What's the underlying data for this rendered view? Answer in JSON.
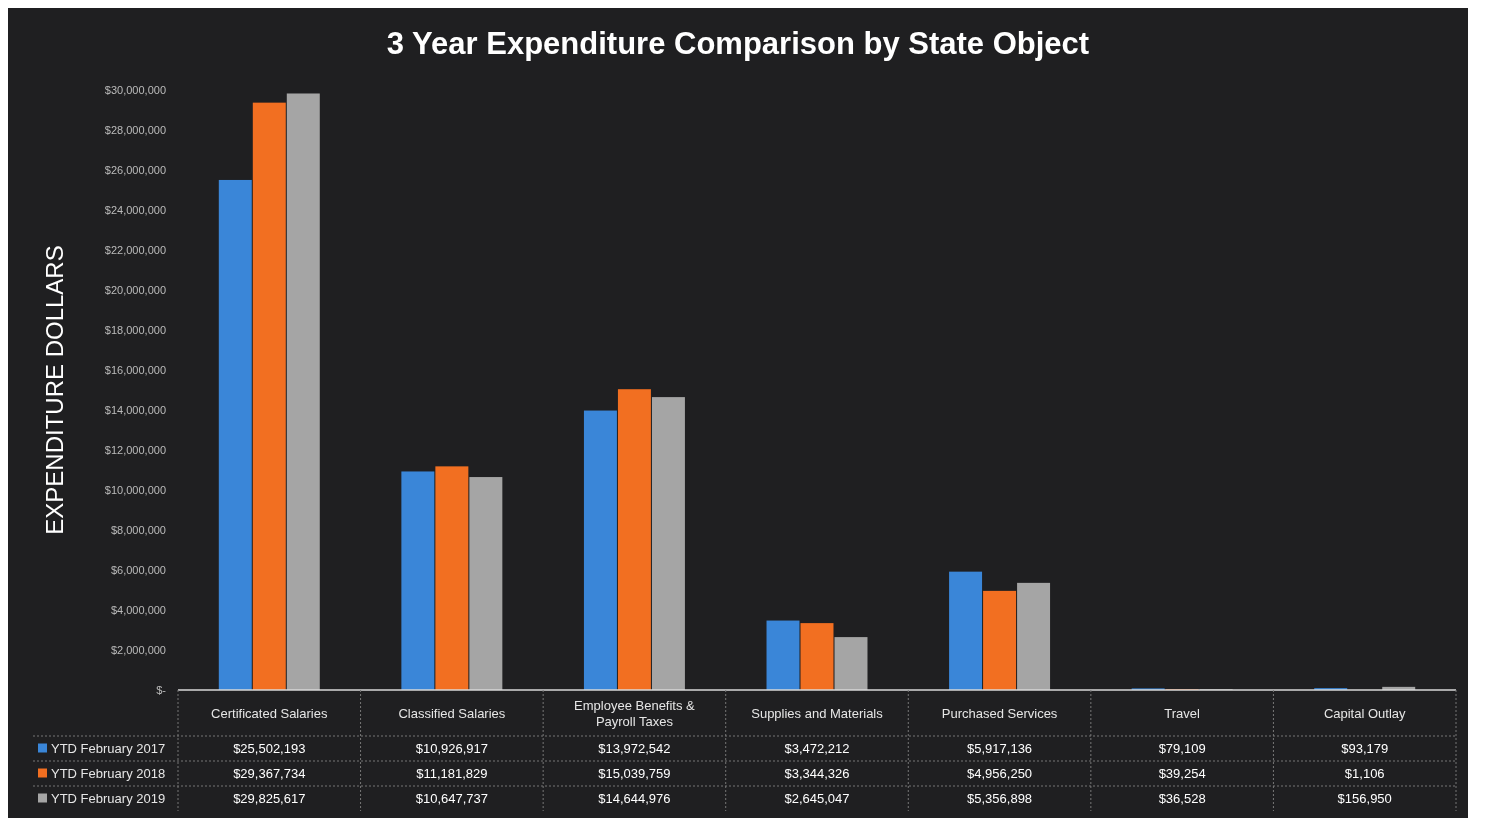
{
  "chart_data": {
    "type": "bar",
    "title": "3 Year Expenditure Comparison by State Object",
    "ylabel": "EXPENDITURE DOLLARS",
    "categories": [
      "Certificated Salaries",
      "Classified Salaries",
      "Employee Benefits & Payroll Taxes",
      "Supplies and Materials",
      "Purchased Services",
      "Travel",
      "Capital Outlay"
    ],
    "series": [
      {
        "name": "YTD February 2017",
        "color": "#3a86d8",
        "values": [
          25502193,
          10926917,
          13972542,
          3472212,
          5917136,
          79109,
          93179
        ],
        "value_labels": [
          "$25,502,193",
          "$10,926,917",
          "$13,972,542",
          "$3,472,212",
          "$5,917,136",
          "$79,109",
          "$93,179"
        ]
      },
      {
        "name": "YTD February 2018",
        "color": "#f26f21",
        "values": [
          29367734,
          11181829,
          15039759,
          3344326,
          4956250,
          39254,
          1106
        ],
        "value_labels": [
          "$29,367,734",
          "$11,181,829",
          "$15,039,759",
          "$3,344,326",
          "$4,956,250",
          "$39,254",
          "$1,106"
        ]
      },
      {
        "name": "YTD February 2019",
        "color": "#a5a5a5",
        "values": [
          29825617,
          10647737,
          14644976,
          2645047,
          5356898,
          36528,
          156950
        ],
        "value_labels": [
          "$29,825,617",
          "$10,647,737",
          "$14,644,976",
          "$2,645,047",
          "$5,356,898",
          "$36,528",
          "$156,950"
        ]
      }
    ],
    "ylim": [
      0,
      30000000
    ],
    "yticks": [
      {
        "value": 0,
        "label": "$-"
      },
      {
        "value": 2000000,
        "label": "$2,000,000"
      },
      {
        "value": 4000000,
        "label": "$4,000,000"
      },
      {
        "value": 6000000,
        "label": "$6,000,000"
      },
      {
        "value": 8000000,
        "label": "$8,000,000"
      },
      {
        "value": 10000000,
        "label": "$10,000,000"
      },
      {
        "value": 12000000,
        "label": "$12,000,000"
      },
      {
        "value": 14000000,
        "label": "$14,000,000"
      },
      {
        "value": 16000000,
        "label": "$16,000,000"
      },
      {
        "value": 18000000,
        "label": "$18,000,000"
      },
      {
        "value": 20000000,
        "label": "$20,000,000"
      },
      {
        "value": 22000000,
        "label": "$22,000,000"
      },
      {
        "value": 24000000,
        "label": "$24,000,000"
      },
      {
        "value": 26000000,
        "label": "$26,000,000"
      },
      {
        "value": 28000000,
        "label": "$28,000,000"
      },
      {
        "value": 30000000,
        "label": "$30,000,000"
      }
    ],
    "grid": false,
    "legend": "bottom"
  }
}
